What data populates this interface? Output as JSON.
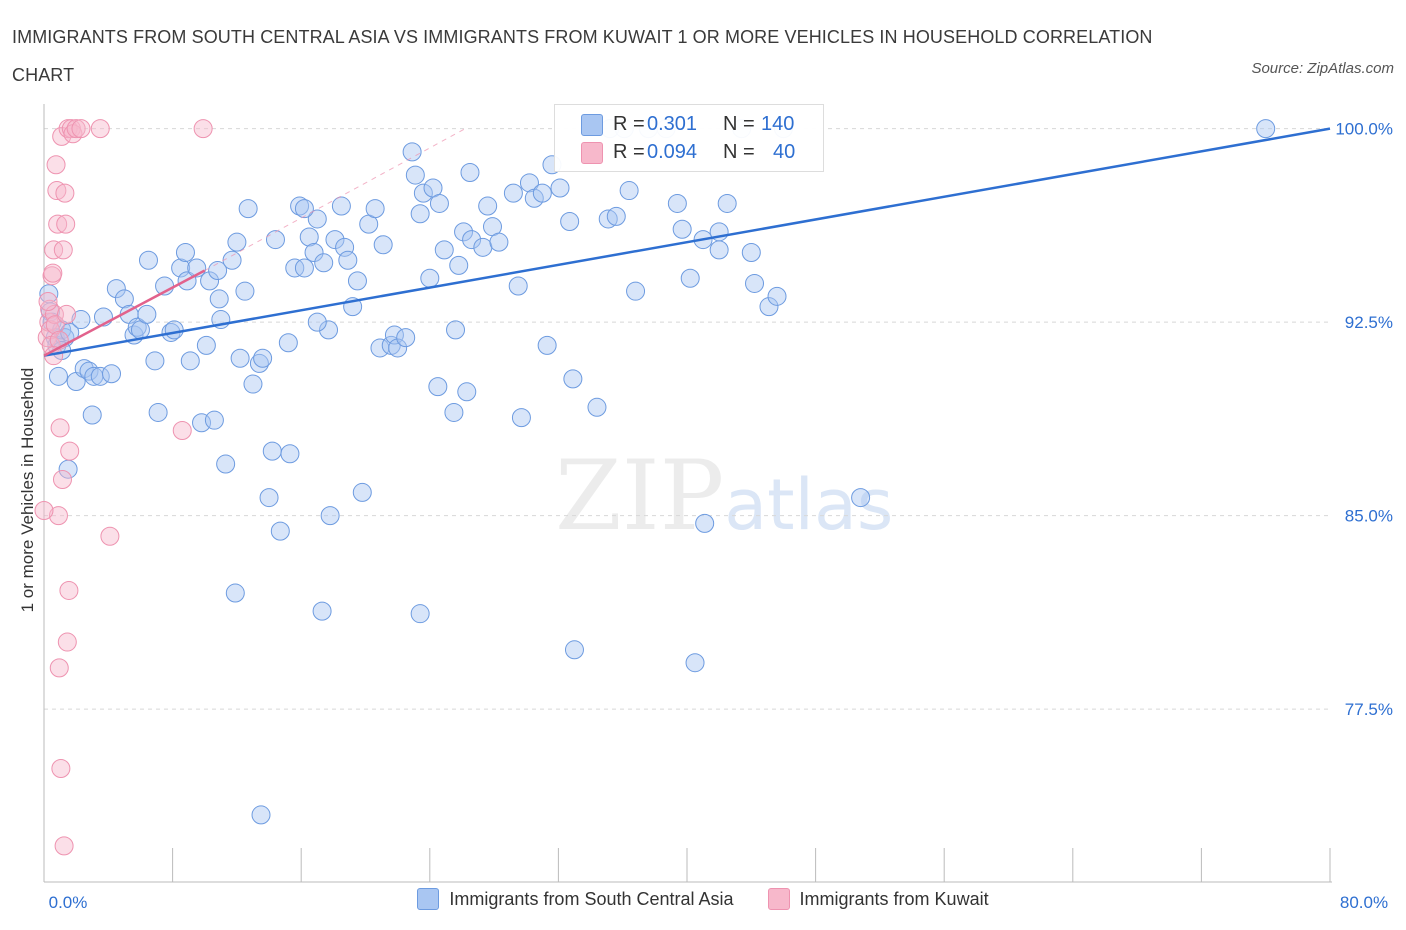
{
  "header": {
    "title": "IMMIGRANTS FROM SOUTH CENTRAL ASIA VS IMMIGRANTS FROM KUWAIT 1 OR MORE VEHICLES IN HOUSEHOLD CORRELATION CHART",
    "source": "Source: ZipAtlas.com"
  },
  "watermark": {
    "zip": "ZIP",
    "atlas": "atlas"
  },
  "stats": {
    "r_label": "R =",
    "n_label": "N =",
    "rows": [
      {
        "r": "0.301",
        "n": "140",
        "color": "#a9c6f2"
      },
      {
        "r": "0.094",
        "n": "40",
        "color": "#f7b8cb"
      }
    ]
  },
  "colors": {
    "blue_fill": "rgba(169,198,242,0.45)",
    "blue_stroke": "#6d9be0",
    "blue_line": "#2e6fd1",
    "pink_fill": "rgba(247,184,203,0.45)",
    "pink_stroke": "#ee93b0",
    "pink_line": "#e2628c",
    "axis_tick_text": "#2e6fd1"
  },
  "chart_data": {
    "type": "scatter",
    "title": "IMMIGRANTS FROM SOUTH CENTRAL ASIA VS IMMIGRANTS FROM KUWAIT 1 OR MORE VEHICLES IN HOUSEHOLD CORRELATION CHART",
    "xlabel": "",
    "ylabel": "1 or more Vehicles in Household",
    "xlim": [
      0,
      80
    ],
    "ylim": [
      70.8,
      100.8
    ],
    "x_tick_labels": [
      "0.0%",
      "80.0%"
    ],
    "y_ticks": [
      77.5,
      85.0,
      92.5,
      100.0
    ],
    "y_tick_labels": [
      "77.5%",
      "85.0%",
      "92.5%",
      "100.0%"
    ],
    "grid": "horizontal dashed",
    "legend_position": "bottom-center",
    "series": [
      {
        "name": "Immigrants from South Central Asia",
        "color": "#a9c6f2",
        "trend": {
          "x": [
            0,
            80
          ],
          "y": [
            91.2,
            100.0
          ]
        },
        "points": [
          [
            0.4,
            92.9
          ],
          [
            0.5,
            92.5
          ],
          [
            0.7,
            91.9
          ],
          [
            0.8,
            91.6
          ],
          [
            0.9,
            90.4
          ],
          [
            1.1,
            92.2
          ],
          [
            1.3,
            91.9
          ],
          [
            1.5,
            86.8
          ],
          [
            1.6,
            92.1
          ],
          [
            2.0,
            90.2
          ],
          [
            2.3,
            92.6
          ],
          [
            2.5,
            90.7
          ],
          [
            2.8,
            90.6
          ],
          [
            3.0,
            88.9
          ],
          [
            3.1,
            90.4
          ],
          [
            3.5,
            90.4
          ],
          [
            3.7,
            92.7
          ],
          [
            4.2,
            90.5
          ],
          [
            4.5,
            93.8
          ],
          [
            5.0,
            93.4
          ],
          [
            5.3,
            92.8
          ],
          [
            5.6,
            92.0
          ],
          [
            5.8,
            92.3
          ],
          [
            6.0,
            92.2
          ],
          [
            6.4,
            92.8
          ],
          [
            6.5,
            94.9
          ],
          [
            6.9,
            91.0
          ],
          [
            7.1,
            89.0
          ],
          [
            7.5,
            93.9
          ],
          [
            7.9,
            92.1
          ],
          [
            8.1,
            92.2
          ],
          [
            8.5,
            94.6
          ],
          [
            8.8,
            95.2
          ],
          [
            8.9,
            94.1
          ],
          [
            9.1,
            91.0
          ],
          [
            9.5,
            94.6
          ],
          [
            9.8,
            88.6
          ],
          [
            10.1,
            91.6
          ],
          [
            10.3,
            94.1
          ],
          [
            10.6,
            88.7
          ],
          [
            10.8,
            94.5
          ],
          [
            10.9,
            93.4
          ],
          [
            11.0,
            92.6
          ],
          [
            11.3,
            87.0
          ],
          [
            11.7,
            94.9
          ],
          [
            12.0,
            95.6
          ],
          [
            12.5,
            93.7
          ],
          [
            12.7,
            96.9
          ],
          [
            13.0,
            90.1
          ],
          [
            13.4,
            90.9
          ],
          [
            13.6,
            91.1
          ],
          [
            14.0,
            85.7
          ],
          [
            14.2,
            87.5
          ],
          [
            14.4,
            95.7
          ],
          [
            14.7,
            84.4
          ],
          [
            15.2,
            91.7
          ],
          [
            15.3,
            87.4
          ],
          [
            15.6,
            94.6
          ],
          [
            15.9,
            97.0
          ],
          [
            16.2,
            94.6
          ],
          [
            16.5,
            95.8
          ],
          [
            16.8,
            95.2
          ],
          [
            17.0,
            96.5
          ],
          [
            17.4,
            94.8
          ],
          [
            17.7,
            92.2
          ],
          [
            17.8,
            85.0
          ],
          [
            18.1,
            95.7
          ],
          [
            18.5,
            97.0
          ],
          [
            18.7,
            95.4
          ],
          [
            18.9,
            94.9
          ],
          [
            19.2,
            93.1
          ],
          [
            19.5,
            94.1
          ],
          [
            19.8,
            85.9
          ],
          [
            20.2,
            96.3
          ],
          [
            20.6,
            96.9
          ],
          [
            20.9,
            91.5
          ],
          [
            21.1,
            95.5
          ],
          [
            21.6,
            91.6
          ],
          [
            21.8,
            92.0
          ],
          [
            22.0,
            91.5
          ],
          [
            22.5,
            91.9
          ],
          [
            22.9,
            99.1
          ],
          [
            23.1,
            98.2
          ],
          [
            23.4,
            96.7
          ],
          [
            23.6,
            97.5
          ],
          [
            24.0,
            94.2
          ],
          [
            24.2,
            97.7
          ],
          [
            24.6,
            97.1
          ],
          [
            24.9,
            95.3
          ],
          [
            25.5,
            89.0
          ],
          [
            25.6,
            92.2
          ],
          [
            25.8,
            94.7
          ],
          [
            26.1,
            96.0
          ],
          [
            26.3,
            89.8
          ],
          [
            26.6,
            95.7
          ],
          [
            27.3,
            95.4
          ],
          [
            27.6,
            97.0
          ],
          [
            27.9,
            96.2
          ],
          [
            28.3,
            95.6
          ],
          [
            29.2,
            97.5
          ],
          [
            29.5,
            93.9
          ],
          [
            29.7,
            88.8
          ],
          [
            30.2,
            97.9
          ],
          [
            30.5,
            97.3
          ],
          [
            31.0,
            97.5
          ],
          [
            31.3,
            91.6
          ],
          [
            31.6,
            98.6
          ],
          [
            32.1,
            97.7
          ],
          [
            32.7,
            96.4
          ],
          [
            32.9,
            90.3
          ],
          [
            33.0,
            79.8
          ],
          [
            34.4,
            89.2
          ],
          [
            35.1,
            96.5
          ],
          [
            35.2,
            100.0
          ],
          [
            35.6,
            96.6
          ],
          [
            36.1,
            100.0
          ],
          [
            36.4,
            97.6
          ],
          [
            36.8,
            93.7
          ],
          [
            37.6,
            100.0
          ],
          [
            38.7,
            100.0
          ],
          [
            39.4,
            97.1
          ],
          [
            39.7,
            96.1
          ],
          [
            40.2,
            94.2
          ],
          [
            41.0,
            95.7
          ],
          [
            41.1,
            84.7
          ],
          [
            42.0,
            96.0
          ],
          [
            42.0,
            95.3
          ],
          [
            42.5,
            97.1
          ],
          [
            43.4,
            100.0
          ],
          [
            44.0,
            95.2
          ],
          [
            44.2,
            94.0
          ],
          [
            45.1,
            93.1
          ],
          [
            45.6,
            93.5
          ],
          [
            46.0,
            100.0
          ],
          [
            50.8,
            85.7
          ],
          [
            76.0,
            100.0
          ],
          [
            11.9,
            82.0
          ],
          [
            17.3,
            81.3
          ],
          [
            23.4,
            81.2
          ],
          [
            13.5,
            73.4
          ],
          [
            1.1,
            91.4
          ],
          [
            0.3,
            93.6
          ],
          [
            12.2,
            91.1
          ],
          [
            16.2,
            96.9
          ],
          [
            26.5,
            98.3
          ],
          [
            40.5,
            79.3
          ],
          [
            17.0,
            92.5
          ],
          [
            24.5,
            90.0
          ]
        ]
      },
      {
        "name": "Immigrants from Kuwait",
        "color": "#f7b8cb",
        "trend": {
          "x": [
            0,
            10
          ],
          "y": [
            91.2,
            94.5
          ]
        },
        "points": [
          [
            0.2,
            91.9
          ],
          [
            0.3,
            92.5
          ],
          [
            0.35,
            93.0
          ],
          [
            0.4,
            92.2
          ],
          [
            0.45,
            91.6
          ],
          [
            0.5,
            94.3
          ],
          [
            0.55,
            94.4
          ],
          [
            0.6,
            95.3
          ],
          [
            0.65,
            92.8
          ],
          [
            0.7,
            92.4
          ],
          [
            0.75,
            98.6
          ],
          [
            0.8,
            97.6
          ],
          [
            0.85,
            96.3
          ],
          [
            0.9,
            85.0
          ],
          [
            0.95,
            91.8
          ],
          [
            1.0,
            88.4
          ],
          [
            1.05,
            75.2
          ],
          [
            1.1,
            99.7
          ],
          [
            1.15,
            86.4
          ],
          [
            1.2,
            95.3
          ],
          [
            1.25,
            72.2
          ],
          [
            1.3,
            97.5
          ],
          [
            1.35,
            96.3
          ],
          [
            1.4,
            92.8
          ],
          [
            1.45,
            80.1
          ],
          [
            1.5,
            100.0
          ],
          [
            1.55,
            82.1
          ],
          [
            1.6,
            87.5
          ],
          [
            1.7,
            100.0
          ],
          [
            1.8,
            99.8
          ],
          [
            2.0,
            100.0
          ],
          [
            2.3,
            100.0
          ],
          [
            3.5,
            100.0
          ],
          [
            4.1,
            84.2
          ],
          [
            9.9,
            100.0
          ],
          [
            8.6,
            88.3
          ],
          [
            0.95,
            79.1
          ],
          [
            0.6,
            91.2
          ],
          [
            0.0,
            85.2
          ],
          [
            0.25,
            93.3
          ]
        ]
      }
    ]
  },
  "legend": {
    "items": [
      {
        "label": "Immigrants from South Central Asia",
        "color": "#a9c6f2"
      },
      {
        "label": "Immigrants from Kuwait",
        "color": "#f7b8cb"
      }
    ]
  }
}
